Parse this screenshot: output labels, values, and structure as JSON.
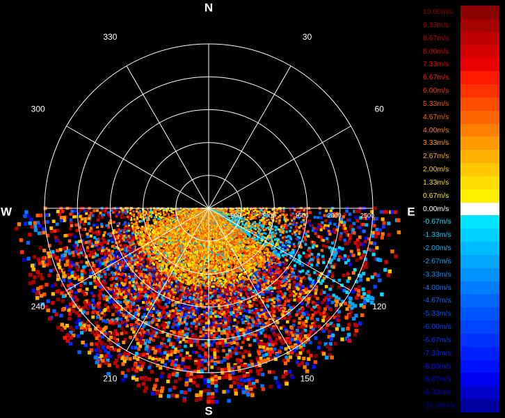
{
  "chart_data": {
    "type": "polar-scatter",
    "compass": {
      "north": "N",
      "east": "E",
      "south": "S",
      "west": "W"
    },
    "angle_labels": [
      {
        "deg": 30,
        "text": "30"
      },
      {
        "deg": 60,
        "text": "60"
      },
      {
        "deg": 120,
        "text": "120"
      },
      {
        "deg": 150,
        "text": "150"
      },
      {
        "deg": 210,
        "text": "210"
      },
      {
        "deg": 240,
        "text": "240"
      },
      {
        "deg": 300,
        "text": "300"
      },
      {
        "deg": 330,
        "text": "330"
      }
    ],
    "range_max": 2500,
    "range_ticks": [
      {
        "value": 500,
        "text": "500"
      },
      {
        "value": 1000,
        "text": "1000"
      },
      {
        "value": 1500,
        "text": "1500"
      },
      {
        "value": 2000,
        "text": "2000"
      },
      {
        "value": 2500,
        "text": "2500"
      }
    ],
    "colorbar": {
      "labels": [
        "10.00m/s",
        "9.33m/s",
        "8.67m/s",
        "8.00m/s",
        "7.33m/s",
        "6.67m/s",
        "6.00m/s",
        "5.33m/s",
        "4.67m/s",
        "4.00m/s",
        "3.33m/s",
        "2.67m/s",
        "2.00m/s",
        "1.33m/s",
        "0.67m/s",
        "0.00m/s",
        "-0.67m/s",
        "-1.33m/s",
        "-2.00m/s",
        "-2.67m/s",
        "-3.33m/s",
        "-4.00m/s",
        "-4.67m/s",
        "-5.33m/s",
        "-6.00m/s",
        "-6.67m/s",
        "-7.33m/s",
        "-8.00m/s",
        "-8.67m/s",
        "-9.33m/s",
        "-10.00m/s"
      ],
      "colors": [
        "#8b0000",
        "#a50000",
        "#be0000",
        "#d40000",
        "#e80000",
        "#ff1a00",
        "#ff3300",
        "#ff4d00",
        "#ff6600",
        "#ff8000",
        "#ff9900",
        "#ffb000",
        "#ffc800",
        "#ffdd00",
        "#fff000",
        "#ffffff",
        "#00e5ff",
        "#00d0ff",
        "#00bbff",
        "#00a6ff",
        "#0092ff",
        "#007dff",
        "#0068ff",
        "#0055ff",
        "#0044ff",
        "#0033ff",
        "#0022ff",
        "#0011ff",
        "#0000f0",
        "#0000c8",
        "#0000a0"
      ]
    },
    "data_sector": {
      "azimuth_start": 90,
      "azimuth_end": 270,
      "range_start": 0,
      "range_end": 2500
    }
  }
}
